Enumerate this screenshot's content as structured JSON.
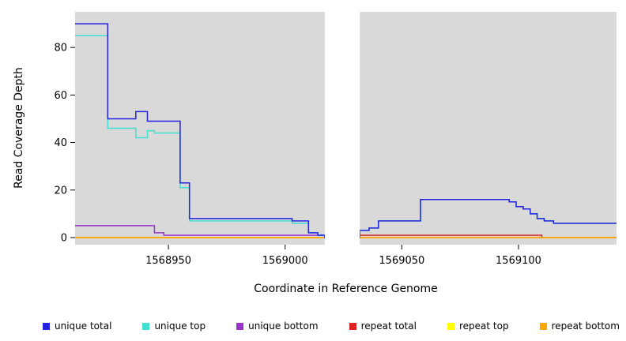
{
  "axes": {
    "x_label": "Coordinate in Reference Genome",
    "y_label": "Read Coverage Depth"
  },
  "style": {
    "figure_background": "#ffffff",
    "plot_background": "#d9d9d9",
    "mask_color": "#ffffff",
    "tick_color": "#000000"
  },
  "chart_data": {
    "type": "line",
    "step": "after",
    "title": "",
    "xlabel": "Coordinate in Reference Genome",
    "ylabel": "Read Coverage Depth",
    "xlim": [
      1568910,
      1569142
    ],
    "ylim": [
      -3,
      95
    ],
    "xticks": [
      1568950,
      1569000,
      1569050,
      1569100
    ],
    "yticks": [
      0,
      20,
      40,
      60,
      80
    ],
    "grid": false,
    "legend_position": "bottom",
    "masked_region": {
      "from": 1569017,
      "to": 1569032
    },
    "series": [
      {
        "name": "unique bottom",
        "color": "#9933CC",
        "points": [
          [
            1568910,
            5
          ],
          [
            1568944,
            2
          ],
          [
            1568948,
            1
          ],
          [
            1569017,
            0
          ]
        ]
      },
      {
        "name": "repeat total",
        "color": "#DD2222",
        "points": [
          [
            1568910,
            0
          ],
          [
            1569032,
            1
          ],
          [
            1569110,
            0
          ]
        ]
      },
      {
        "name": "repeat top",
        "color": "#FFFF00",
        "points": [
          [
            1568910,
            0
          ]
        ]
      },
      {
        "name": "repeat bottom",
        "color": "#FFA500",
        "points": [
          [
            1568910,
            0
          ]
        ]
      },
      {
        "name": "unique top",
        "color": "#40E0D0",
        "points": [
          [
            1568910,
            85
          ],
          [
            1568924,
            46
          ],
          [
            1568936,
            42
          ],
          [
            1568941,
            45
          ],
          [
            1568944,
            44
          ],
          [
            1568955,
            21
          ],
          [
            1568959,
            7
          ],
          [
            1569003,
            6
          ],
          [
            1569010,
            2
          ],
          [
            1569014,
            1
          ],
          [
            1569017,
            0
          ],
          [
            1569032,
            3
          ],
          [
            1569036,
            4
          ],
          [
            1569040,
            7
          ],
          [
            1569058,
            16
          ],
          [
            1569096,
            15
          ],
          [
            1569099,
            13
          ],
          [
            1569102,
            12
          ],
          [
            1569105,
            10
          ],
          [
            1569108,
            8
          ],
          [
            1569111,
            7
          ],
          [
            1569115,
            6
          ]
        ]
      },
      {
        "name": "unique total",
        "color": "#2222E0",
        "points": [
          [
            1568910,
            90
          ],
          [
            1568924,
            50
          ],
          [
            1568936,
            53
          ],
          [
            1568941,
            49
          ],
          [
            1568955,
            23
          ],
          [
            1568959,
            8
          ],
          [
            1569003,
            7
          ],
          [
            1569010,
            2
          ],
          [
            1569014,
            1
          ],
          [
            1569017,
            0
          ],
          [
            1569032,
            3
          ],
          [
            1569036,
            4
          ],
          [
            1569040,
            7
          ],
          [
            1569058,
            16
          ],
          [
            1569096,
            15
          ],
          [
            1569099,
            13
          ],
          [
            1569102,
            12
          ],
          [
            1569105,
            10
          ],
          [
            1569108,
            8
          ],
          [
            1569111,
            7
          ],
          [
            1569115,
            6
          ]
        ]
      }
    ]
  },
  "legend": {
    "items": [
      {
        "label": "unique total",
        "color": "#2222E0"
      },
      {
        "label": "unique top",
        "color": "#40E0D0"
      },
      {
        "label": "unique bottom",
        "color": "#9933CC"
      },
      {
        "label": "repeat total",
        "color": "#DD2222"
      },
      {
        "label": "repeat top",
        "color": "#FFFF00"
      },
      {
        "label": "repeat bottom",
        "color": "#FFA500"
      }
    ]
  }
}
